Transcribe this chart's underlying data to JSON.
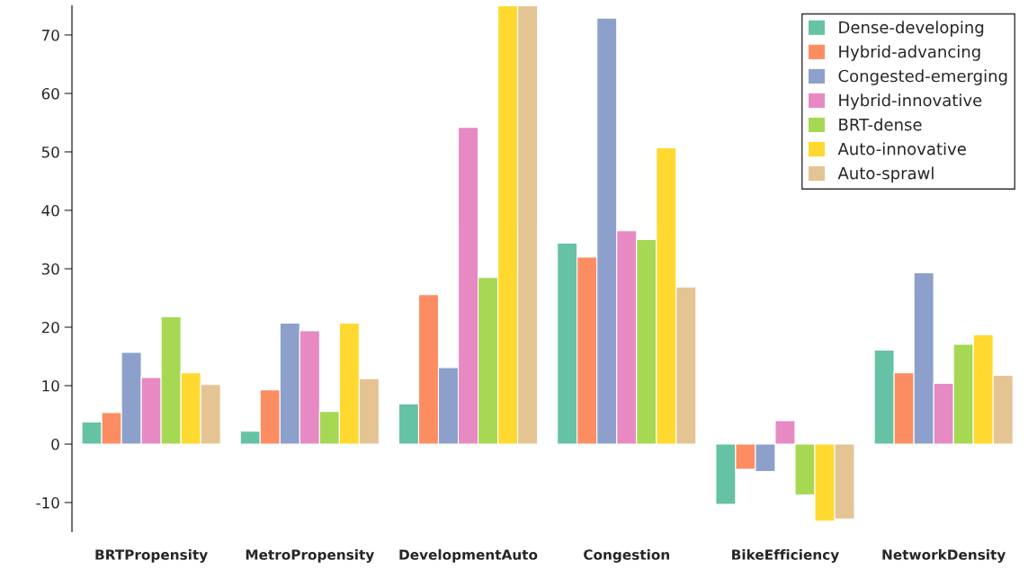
{
  "chart_data": {
    "type": "bar",
    "categories": [
      "BRTPropensity",
      "MetroPropensity",
      "DevelopmentAuto",
      "Congestion",
      "BikeEfficiency",
      "NetworkDensity"
    ],
    "series": [
      {
        "name": "Dense-developing",
        "color": "#66c2a5",
        "values": [
          3.8,
          2.2,
          6.9,
          34.4,
          -10.3,
          16.1
        ]
      },
      {
        "name": "Hybrid-advancing",
        "color": "#fc8d62",
        "values": [
          5.4,
          9.3,
          25.6,
          32.0,
          -4.3,
          12.2
        ]
      },
      {
        "name": "Congested-emerging",
        "color": "#8da0cb",
        "values": [
          15.7,
          20.7,
          13.1,
          72.9,
          -4.7,
          29.3
        ]
      },
      {
        "name": "Hybrid-innovative",
        "color": "#e78ac3",
        "values": [
          11.4,
          19.4,
          54.2,
          36.5,
          4.0,
          10.4
        ]
      },
      {
        "name": "BRT-dense",
        "color": "#a6d854",
        "values": [
          21.8,
          5.6,
          28.5,
          35.0,
          -8.7,
          17.1
        ]
      },
      {
        "name": "Auto-innovative",
        "color": "#ffd92f",
        "values": [
          12.2,
          20.7,
          75,
          50.7,
          -13.2,
          18.7
        ]
      },
      {
        "name": "Auto-sprawl",
        "color": "#e5c494",
        "values": [
          10.2,
          11.2,
          75,
          26.9,
          -12.8,
          11.8
        ]
      }
    ],
    "ylim": [
      -15,
      75
    ],
    "yticks": [
      -10,
      0,
      10,
      20,
      30,
      40,
      50,
      60,
      70
    ],
    "grid": false,
    "legend": "top right"
  }
}
